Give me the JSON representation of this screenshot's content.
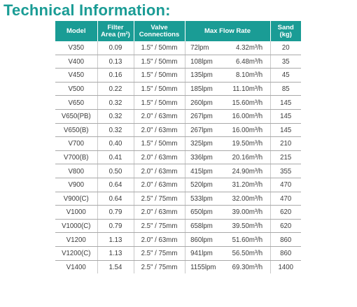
{
  "title": "Technical Information:",
  "table": {
    "headers": {
      "model": "Model",
      "filter_area": "Filter\nArea (m²)",
      "valve": "Valve\nConnections",
      "flow": "Max Flow Rate",
      "sand": "Sand\n(kg)"
    },
    "rows": [
      {
        "model": "V350",
        "area": "0.09",
        "valve": "1.5\" / 50mm",
        "lpm": "72lpm",
        "m3h": "4.32m³/h",
        "sand": "20"
      },
      {
        "model": "V400",
        "area": "0.13",
        "valve": "1.5\" / 50mm",
        "lpm": "108lpm",
        "m3h": "6.48m³/h",
        "sand": "35"
      },
      {
        "model": "V450",
        "area": "0.16",
        "valve": "1.5\" / 50mm",
        "lpm": "135lpm",
        "m3h": "8.10m³/h",
        "sand": "45"
      },
      {
        "model": "V500",
        "area": "0.22",
        "valve": "1.5\" / 50mm",
        "lpm": "185lpm",
        "m3h": "11.10m³/h",
        "sand": "85"
      },
      {
        "model": "V650",
        "area": "0.32",
        "valve": "1.5\" / 50mm",
        "lpm": "260lpm",
        "m3h": "15.60m³/h",
        "sand": "145"
      },
      {
        "model": "V650(PB)",
        "area": "0.32",
        "valve": "2.0\" / 63mm",
        "lpm": "267lpm",
        "m3h": "16.00m³/h",
        "sand": "145"
      },
      {
        "model": "V650(B)",
        "area": "0.32",
        "valve": "2.0\" / 63mm",
        "lpm": "267lpm",
        "m3h": "16.00m³/h",
        "sand": "145"
      },
      {
        "model": "V700",
        "area": "0.40",
        "valve": "1.5\" / 50mm",
        "lpm": "325lpm",
        "m3h": "19.50m³/h",
        "sand": "210"
      },
      {
        "model": "V700(B)",
        "area": "0.41",
        "valve": "2.0\" / 63mm",
        "lpm": "336lpm",
        "m3h": "20.16m³/h",
        "sand": "215"
      },
      {
        "model": "V800",
        "area": "0.50",
        "valve": "2.0\" / 63mm",
        "lpm": "415lpm",
        "m3h": "24.90m³/h",
        "sand": "355"
      },
      {
        "model": "V900",
        "area": "0.64",
        "valve": "2.0\" / 63mm",
        "lpm": "520lpm",
        "m3h": "31.20m³/h",
        "sand": "470"
      },
      {
        "model": "V900(C)",
        "area": "0.64",
        "valve": "2.5\" / 75mm",
        "lpm": "533lpm",
        "m3h": "32.00m³/h",
        "sand": "470"
      },
      {
        "model": "V1000",
        "area": "0.79",
        "valve": "2.0\" / 63mm",
        "lpm": "650lpm",
        "m3h": "39.00m³/h",
        "sand": "620"
      },
      {
        "model": "V1000(C)",
        "area": "0.79",
        "valve": "2.5\" / 75mm",
        "lpm": "658lpm",
        "m3h": "39.50m³/h",
        "sand": "620"
      },
      {
        "model": "V1200",
        "area": "1.13",
        "valve": "2.0\" / 63mm",
        "lpm": "860lpm",
        "m3h": "51.60m³/h",
        "sand": "860"
      },
      {
        "model": "V1200(C)",
        "area": "1.13",
        "valve": "2.5\" / 75mm",
        "lpm": "941lpm",
        "m3h": "56.50m³/h",
        "sand": "860"
      },
      {
        "model": "V1400",
        "area": "1.54",
        "valve": "2.5\" / 75mm",
        "lpm": "1155lpm",
        "m3h": "69.30m³/h",
        "sand": "1400"
      }
    ]
  },
  "colors": {
    "accent": "#1a9c95",
    "text": "#3b3b3b",
    "rule": "#a9a9a9"
  }
}
